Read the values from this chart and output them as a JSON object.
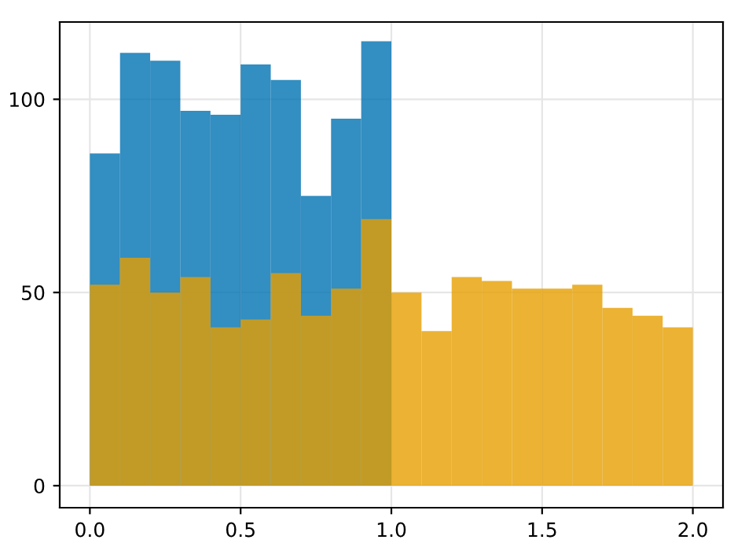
{
  "chart_data": {
    "type": "histogram",
    "bins": [
      0,
      0.1,
      0.2,
      0.3,
      0.4,
      0.5,
      0.6,
      0.7,
      0.8,
      0.9,
      1.0,
      1.1,
      1.2,
      1.3,
      1.4,
      1.5,
      1.6,
      1.7,
      1.8,
      1.9,
      2.0
    ],
    "series": [
      {
        "color": "#0072b2",
        "values": [
          86,
          112,
          110,
          97,
          96,
          109,
          105,
          75,
          95,
          115,
          null,
          null,
          null,
          null,
          null,
          null,
          null,
          null,
          null,
          null
        ]
      },
      {
        "color": "#e69f00",
        "values": [
          52,
          59,
          50,
          54,
          41,
          43,
          55,
          44,
          51,
          69,
          50,
          40,
          54,
          53,
          51,
          51,
          52,
          46,
          44,
          41
        ]
      }
    ],
    "xlim": [
      -0.1,
      2.1
    ],
    "ylim": [
      -5.7,
      120
    ],
    "xticks": [
      {
        "value": 0,
        "label": "0.0"
      },
      {
        "value": 0.5,
        "label": "0.5"
      },
      {
        "value": 1,
        "label": "1.0"
      },
      {
        "value": 1.5,
        "label": "1.5"
      },
      {
        "value": 2,
        "label": "2.0"
      }
    ],
    "yticks": [
      0,
      50,
      100
    ],
    "grid": true
  }
}
